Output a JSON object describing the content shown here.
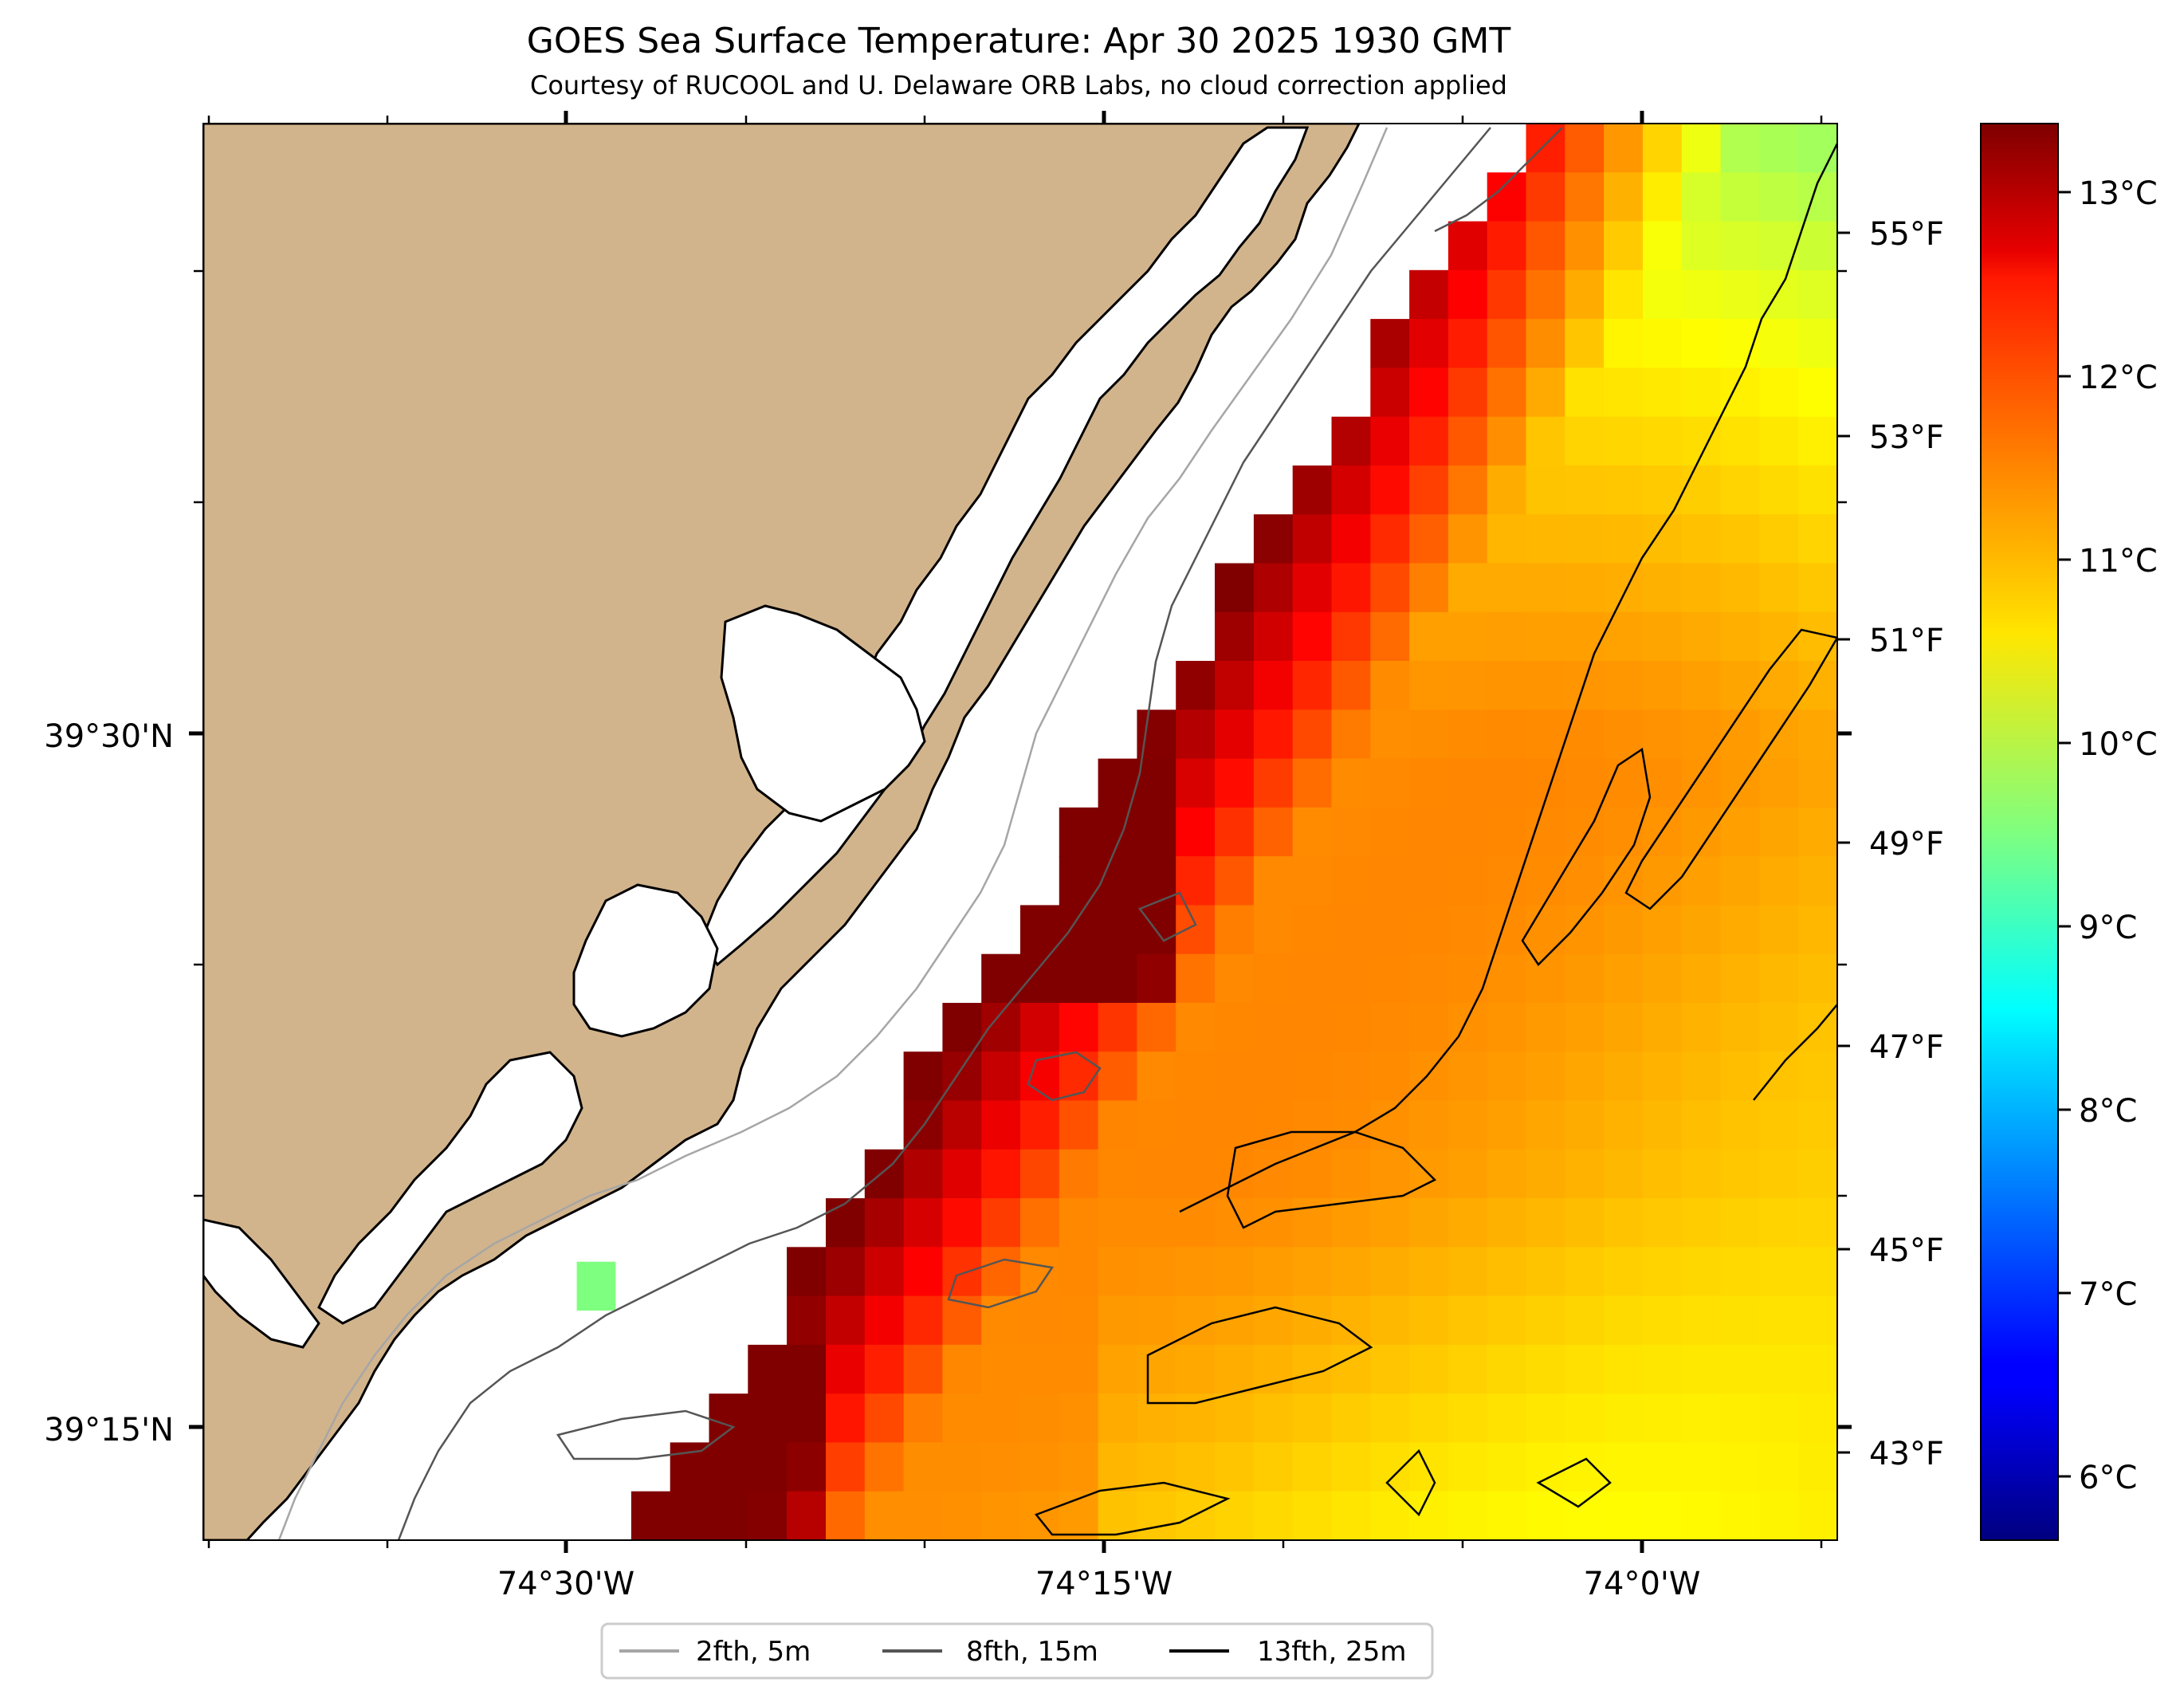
{
  "title": "GOES Sea Surface Temperature: Apr 30 2025 1930 GMT",
  "subtitle": "Courtesy of RUCOOL and U. Delaware ORB Labs, no cloud correction applied",
  "map": {
    "land_color": "#d2b48c",
    "no_data_color": "#ffffff",
    "lon_ticks": [
      "74°30'W",
      "74°15'W",
      "74°0'W"
    ],
    "lat_ticks": [
      "39°30'N",
      "39°15'N"
    ],
    "right_f_ticks": [
      "55°F",
      "53°F",
      "51°F",
      "49°F",
      "47°F",
      "45°F",
      "43°F"
    ]
  },
  "colorbar": {
    "colormap": "jet",
    "c_ticks": [
      "13°C",
      "12°C",
      "11°C",
      "10°C",
      "9°C",
      "8°C",
      "7°C",
      "6°C"
    ],
    "range_c": [
      5.6,
      13.8
    ]
  },
  "legend": {
    "items": [
      {
        "label": "2fth, 5m",
        "color": "#a6a6a6"
      },
      {
        "label": "8fth, 15m",
        "color": "#555555"
      },
      {
        "label": "13fth, 25m",
        "color": "#000000"
      }
    ]
  }
}
